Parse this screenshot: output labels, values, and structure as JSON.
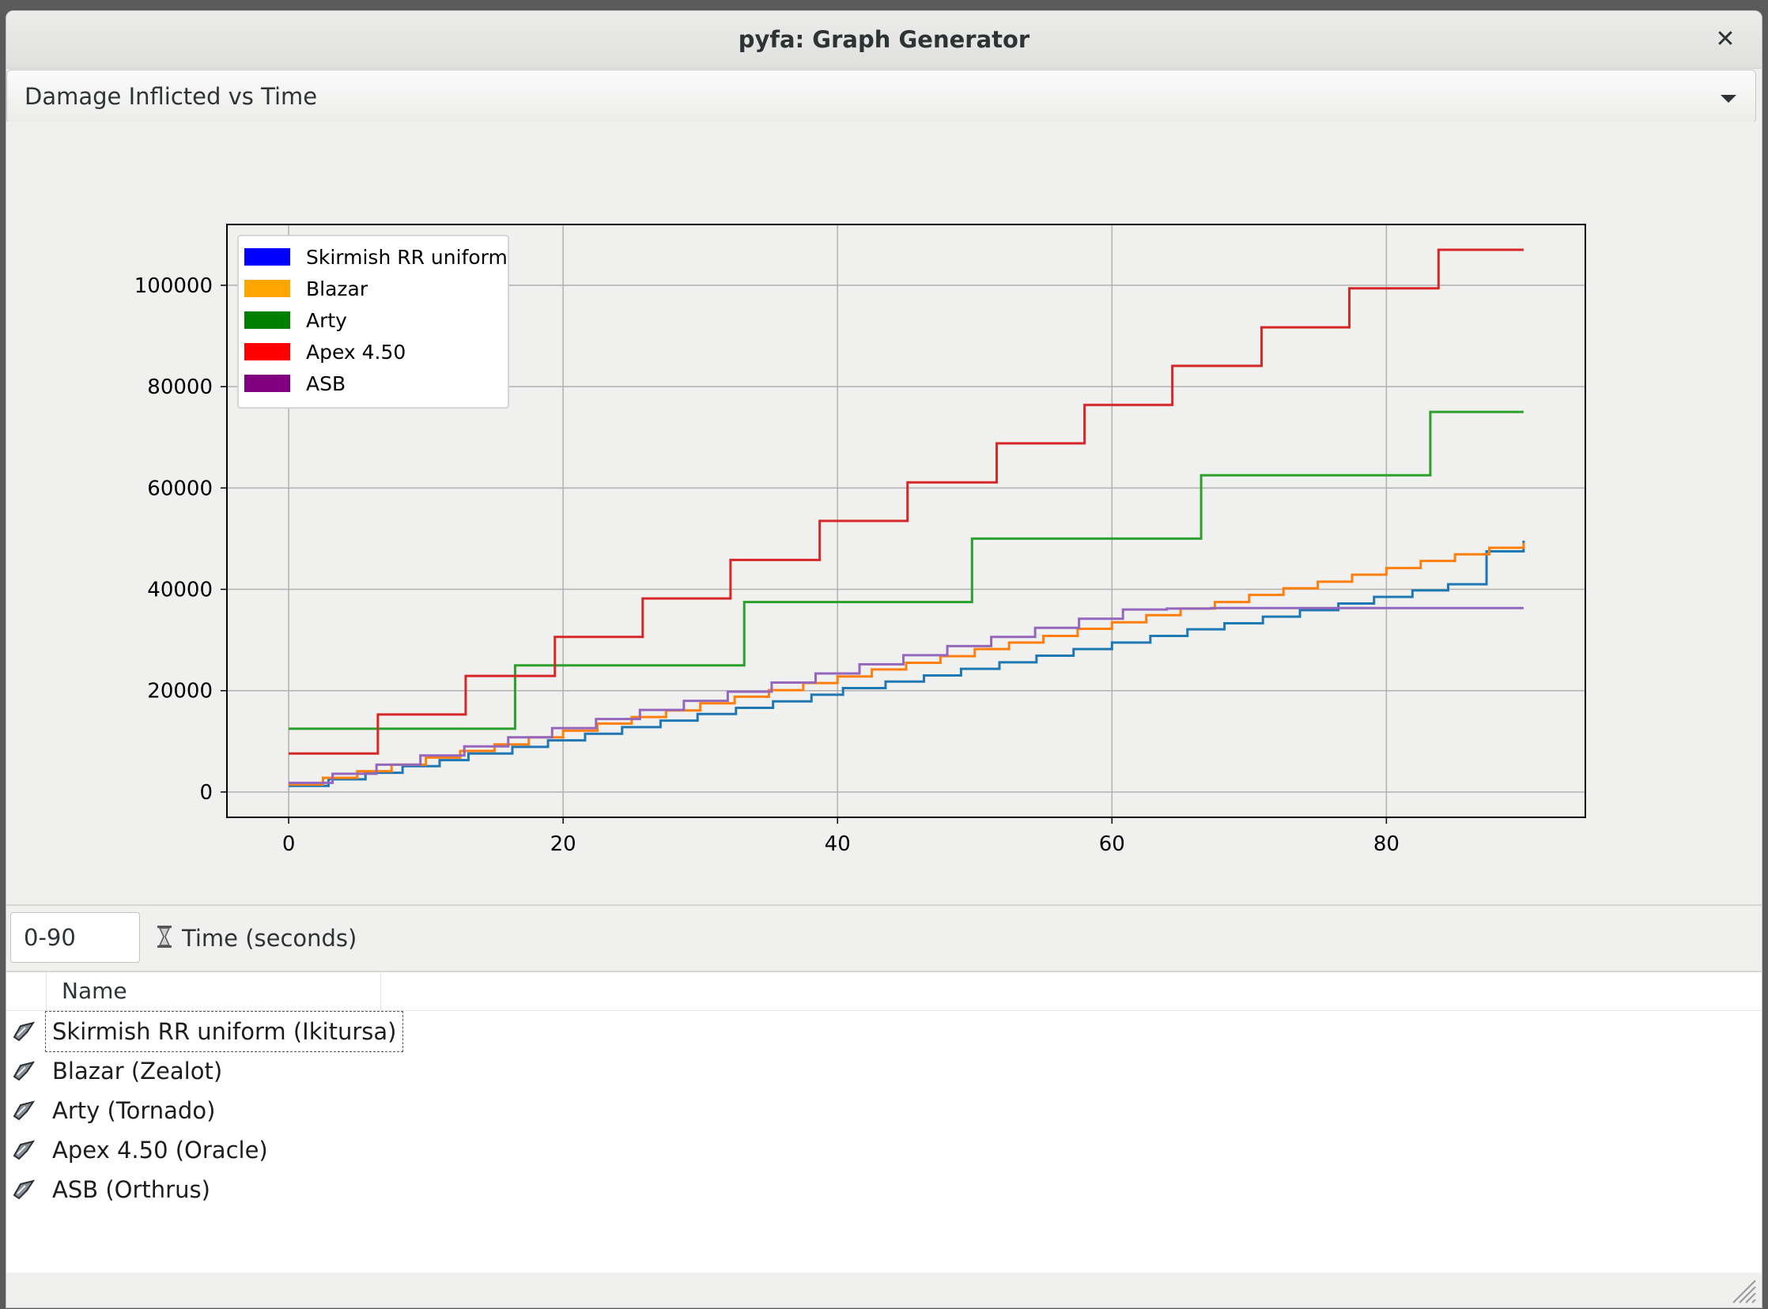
{
  "window": {
    "title": "pyfa: Graph Generator",
    "close_glyph": "✕"
  },
  "graph_selector": {
    "selected": "Damage Inflicted vs Time"
  },
  "range": {
    "value": "0-90",
    "label": "Time (seconds)",
    "icon": "hourglass-icon"
  },
  "fit_list": {
    "column_header": "Name",
    "rows": [
      {
        "label": "Skirmish RR  uniform (Ikitursa)",
        "icon": "ship-icon"
      },
      {
        "label": "Blazar (Zealot)",
        "icon": "ship-icon"
      },
      {
        "label": "Arty (Tornado)",
        "icon": "ship-icon"
      },
      {
        "label": "Apex 4.50 (Oracle)",
        "icon": "ship-icon"
      },
      {
        "label": "ASB (Orthrus)",
        "icon": "ship-icon"
      }
    ]
  },
  "chart_data": {
    "type": "line",
    "title": "",
    "xlabel": "",
    "ylabel": "",
    "xlim": [
      -4.5,
      94.5
    ],
    "ylim": [
      -5000,
      112000
    ],
    "xticks": [
      0,
      20,
      40,
      60,
      80
    ],
    "yticks": [
      0,
      20000,
      40000,
      60000,
      80000,
      100000
    ],
    "grid": true,
    "legend_position": "top-left",
    "legend": [
      {
        "name": "Skirmish RR  uniform",
        "color": "#0000ff"
      },
      {
        "name": "Blazar",
        "color": "#ffa500"
      },
      {
        "name": "Arty",
        "color": "#008000"
      },
      {
        "name": "Apex 4.50",
        "color": "#ff0000"
      },
      {
        "name": "ASB",
        "color": "#800080"
      }
    ],
    "series": [
      {
        "name": "Skirmish RR  uniform",
        "color": "#1f77b4",
        "kind": "steps",
        "x0": 0,
        "xend": 90,
        "y0": 1200,
        "step_x": [
          2.9,
          5.6,
          8.3,
          11.0,
          13.1,
          16.3,
          18.9,
          21.6,
          24.3,
          27.1,
          29.8,
          32.6,
          35.3,
          38.1,
          40.4,
          43.5,
          46.3,
          49.0,
          51.8,
          54.5,
          57.2,
          60.0,
          62.8,
          65.5,
          68.2,
          71.0,
          73.7,
          76.5,
          79.1,
          81.9,
          84.5,
          87.3,
          90.0
        ],
        "step_y": [
          2500,
          3800,
          5100,
          6300,
          7600,
          8900,
          10200,
          11500,
          12800,
          14100,
          15400,
          16600,
          17900,
          19200,
          20500,
          21800,
          23000,
          24300,
          25600,
          26900,
          28200,
          29500,
          30800,
          32100,
          33300,
          34600,
          35900,
          37200,
          38500,
          39800,
          41000,
          47500,
          49600
        ]
      },
      {
        "name": "Blazar",
        "color": "#ff7f0e",
        "kind": "steps",
        "x0": 0,
        "xend": 90,
        "y0": 1500,
        "step_x": [
          2.5,
          5.0,
          7.5,
          10.0,
          12.5,
          15.0,
          17.5,
          20.0,
          22.5,
          25.0,
          27.5,
          30.0,
          32.5,
          35.0,
          37.5,
          40.0,
          42.5,
          45.0,
          47.5,
          50.0,
          52.5,
          55.0,
          57.5,
          60.0,
          62.5,
          65.0,
          67.5,
          70.0,
          72.5,
          75.0,
          77.5,
          80.0,
          82.5,
          85.0,
          87.5,
          90.0
        ],
        "step_y": [
          2800,
          4100,
          5400,
          6800,
          8100,
          9400,
          10800,
          12100,
          13500,
          14800,
          16100,
          17500,
          18800,
          20100,
          21500,
          22800,
          24200,
          25500,
          26800,
          28200,
          29500,
          30800,
          32200,
          33500,
          34900,
          36200,
          37500,
          38900,
          40200,
          41500,
          42900,
          44200,
          45600,
          46900,
          48200,
          49200
        ]
      },
      {
        "name": "Arty",
        "color": "#2ca02c",
        "kind": "steps",
        "x0": 0,
        "xend": 90,
        "y0": 12500,
        "step_x": [
          16.5,
          33.2,
          49.8,
          66.5,
          83.2
        ],
        "step_y": [
          25000,
          37500,
          50000,
          62500,
          75000
        ]
      },
      {
        "name": "Apex 4.50",
        "color": "#d62728",
        "kind": "steps",
        "x0": 0,
        "xend": 90,
        "y0": 7600,
        "step_x": [
          6.5,
          12.9,
          19.4,
          25.8,
          32.2,
          38.7,
          45.1,
          51.6,
          58.0,
          64.4,
          70.9,
          77.3,
          83.8
        ],
        "step_y": [
          15300,
          22900,
          30600,
          38200,
          45800,
          53500,
          61100,
          68800,
          76400,
          84100,
          91700,
          99400,
          107000
        ]
      },
      {
        "name": "ASB",
        "color": "#9467bd",
        "kind": "steps",
        "x0": 0,
        "xend": 90,
        "y0": 1800,
        "step_x": [
          3.2,
          6.4,
          9.6,
          12.8,
          16.0,
          19.2,
          22.4,
          25.6,
          28.8,
          32.0,
          35.2,
          38.4,
          41.6,
          44.8,
          48.0,
          51.2,
          54.4,
          57.6,
          60.8,
          64.0,
          67.2,
          70.4
        ],
        "step_y": [
          3600,
          5400,
          7200,
          9000,
          10800,
          12600,
          14400,
          16200,
          18000,
          19800,
          21600,
          23400,
          25200,
          27000,
          28800,
          30600,
          32400,
          34200,
          36000,
          36200,
          36300,
          36300
        ]
      }
    ]
  }
}
